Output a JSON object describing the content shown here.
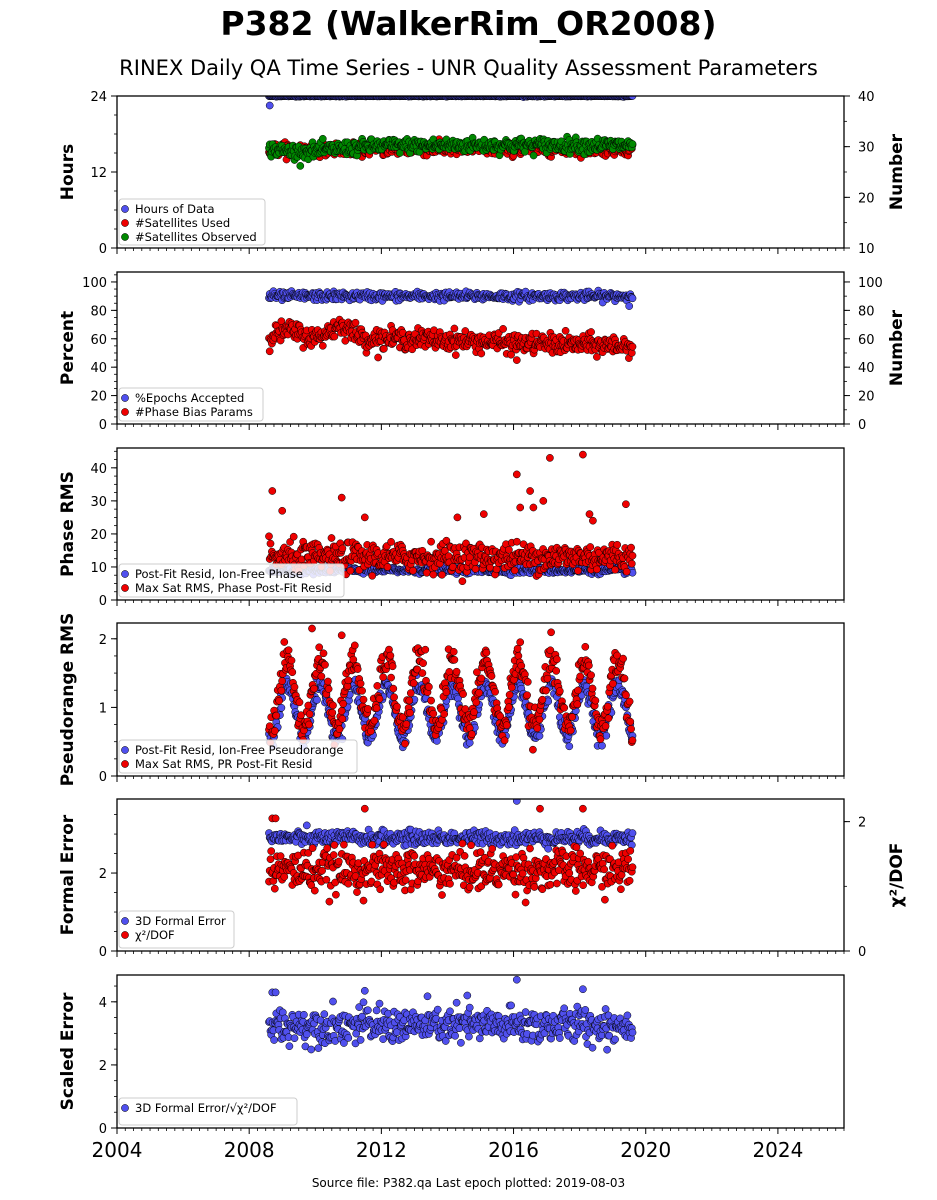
{
  "figure": {
    "title": "P382 (WalkerRim_OR2008)",
    "subtitle": "RINEX Daily QA Time Series - UNR Quality Assessment Parameters",
    "footer": "Source file: P382.qa Last epoch plotted: 2019-08-03"
  },
  "colors": {
    "blue": "#5050ee",
    "red": "#ee0000",
    "green": "#008800",
    "navy": "#101040"
  },
  "chart_data": [
    {
      "type": "scatter",
      "panel": "hours",
      "ylabel": "Hours",
      "ylim": [
        0,
        24
      ],
      "yticks": [
        "0",
        "12",
        "24"
      ],
      "y2label": "Number",
      "y2lim": [
        10,
        40
      ],
      "y2ticks": [
        "10",
        "20",
        "30",
        "40"
      ],
      "xlim": [
        2004,
        2026
      ],
      "xticks": [
        "2004",
        "2008",
        "2012",
        "2016",
        "2020",
        "2024"
      ],
      "legend": "lower-left",
      "series": [
        {
          "name": "Hours of Data",
          "color": "blue",
          "axis": "left",
          "x_range": [
            2008.6,
            2019.6
          ],
          "baseline": 24,
          "noise": 0.05,
          "outliers": [
            [
              2008.62,
              22.5
            ]
          ]
        },
        {
          "name": "#Satellites Used",
          "color": "red",
          "axis": "right",
          "x_range": [
            2008.6,
            2019.6
          ],
          "baseline": 29.5,
          "noise": 0.6,
          "outliers": [
            [
              2016.0,
              28.2
            ],
            [
              2009.1,
              30.1
            ]
          ]
        },
        {
          "name": "#Satellites Observed",
          "color": "green",
          "axis": "right",
          "x_range": [
            2008.6,
            2019.6
          ],
          "trend": [
            [
              2008.6,
              29.5
            ],
            [
              2009.5,
              29.0
            ],
            [
              2010.8,
              29.6
            ],
            [
              2012.0,
              30.2
            ],
            [
              2016.0,
              30.3
            ],
            [
              2019.6,
              30.3
            ]
          ],
          "noise": 0.7
        }
      ]
    },
    {
      "type": "scatter",
      "panel": "percent",
      "ylabel": "Percent",
      "ylim": [
        0,
        107
      ],
      "yticks": [
        "0",
        "20",
        "40",
        "60",
        "80",
        "100"
      ],
      "y2label": "Number",
      "y2lim": [
        0,
        107
      ],
      "y2ticks": [
        "0",
        "20",
        "40",
        "60",
        "80",
        "100"
      ],
      "xlim": [
        2004,
        2026
      ],
      "legend": "lower-left",
      "series": [
        {
          "name": "%Epochs Accepted",
          "color": "blue",
          "axis": "left",
          "x_range": [
            2008.6,
            2019.6
          ],
          "baseline": 90,
          "noise": 1.5,
          "outliers": [
            [
              2019.5,
              83
            ]
          ]
        },
        {
          "name": "#Phase Bias Params",
          "color": "red",
          "axis": "right",
          "x_range": [
            2008.6,
            2019.6
          ],
          "trend": [
            [
              2008.6,
              62
            ],
            [
              2009.2,
              66
            ],
            [
              2010.0,
              60
            ],
            [
              2010.8,
              70
            ],
            [
              2011.5,
              60
            ],
            [
              2013.0,
              60
            ],
            [
              2016.0,
              57
            ],
            [
              2019.6,
              55
            ]
          ],
          "noise": 3.5,
          "outliers": [
            [
              2016.1,
              45
            ]
          ]
        }
      ]
    },
    {
      "type": "scatter",
      "panel": "phase",
      "ylabel": "Phase RMS",
      "ylim": [
        0,
        46
      ],
      "yticks": [
        "0",
        "10",
        "20",
        "30",
        "40"
      ],
      "xlim": [
        2004,
        2026
      ],
      "legend": "lower-left",
      "series": [
        {
          "name": "Post-Fit Resid, Ion-Free Phase",
          "color": "blue",
          "axis": "left",
          "x_range": [
            2008.6,
            2019.6
          ],
          "baseline": 9,
          "noise": 0.5
        },
        {
          "name": "Max Sat RMS, Phase Post-Fit Resid",
          "color": "red",
          "axis": "left",
          "x_range": [
            2008.6,
            2019.6
          ],
          "baseline": 13,
          "noise": 2.2,
          "outliers": [
            [
              2008.7,
              33
            ],
            [
              2010.8,
              31
            ],
            [
              2016.1,
              38
            ],
            [
              2017.1,
              43
            ],
            [
              2018.1,
              44
            ],
            [
              2016.5,
              33
            ],
            [
              2016.9,
              30
            ],
            [
              2016.2,
              28
            ],
            [
              2019.4,
              29
            ],
            [
              2016.6,
              28
            ],
            [
              2018.3,
              26
            ],
            [
              2014.3,
              25
            ],
            [
              2011.5,
              25
            ],
            [
              2009.0,
              27
            ],
            [
              2015.1,
              26
            ],
            [
              2018.4,
              24
            ]
          ]
        }
      ]
    },
    {
      "type": "scatter",
      "panel": "pseudorange",
      "ylabel": "Pseudorange RMS",
      "ylim": [
        0,
        2.23
      ],
      "yticks": [
        "0",
        "1",
        "2"
      ],
      "xlim": [
        2004,
        2026
      ],
      "legend": "lower-left",
      "series": [
        {
          "name": "Post-Fit Resid, Ion-Free Pseudorange",
          "color": "blue",
          "axis": "left",
          "x_range": [
            2008.6,
            2019.6
          ],
          "seasonal": {
            "mean": 0.95,
            "amp": 0.38,
            "peak": 0.15
          },
          "noise": 0.07
        },
        {
          "name": "Max Sat RMS, PR Post-Fit Resid",
          "color": "red",
          "axis": "left",
          "x_range": [
            2008.6,
            2019.6
          ],
          "seasonal": {
            "mean": 1.2,
            "amp": 0.5,
            "peak": 0.15
          },
          "noise": 0.12,
          "outliers": [
            [
              2009.9,
              2.15
            ],
            [
              2010.8,
              2.05
            ],
            [
              2016.2,
              1.95
            ]
          ]
        }
      ]
    },
    {
      "type": "scatter",
      "panel": "formal",
      "ylabel": "Formal Error",
      "ylim": [
        0,
        3.9
      ],
      "yticks": [
        "0",
        "2"
      ],
      "y2label": "χ²/DOF",
      "y2lim": [
        0,
        2.35
      ],
      "y2ticks": [
        "0",
        "2"
      ],
      "xlim": [
        2004,
        2026
      ],
      "legend": "lower-left",
      "series": [
        {
          "name": "3D Formal Error",
          "color": "blue",
          "axis": "left",
          "x_range": [
            2008.6,
            2019.6
          ],
          "baseline": 2.9,
          "noise": 0.09,
          "outliers": [
            [
              2016.1,
              3.85
            ]
          ]
        },
        {
          "name": "χ²/DOF",
          "color": "red",
          "axis": "right",
          "x_range": [
            2008.6,
            2019.6
          ],
          "baseline": 1.25,
          "noise": 0.16,
          "outliers": [
            [
              2008.7,
              2.05
            ],
            [
              2008.8,
              2.05
            ],
            [
              2011.5,
              2.2
            ],
            [
              2016.8,
              2.2
            ],
            [
              2018.1,
              2.2
            ]
          ]
        }
      ]
    },
    {
      "type": "scatter",
      "panel": "scaled",
      "ylabel": "Scaled Error",
      "ylim": [
        0,
        4.85
      ],
      "yticks": [
        "0",
        "2",
        "4"
      ],
      "xlim": [
        2004,
        2026
      ],
      "legend": "lower-left",
      "series": [
        {
          "name": "3D Formal Error/√χ²/DOF",
          "color": "blue",
          "axis": "left",
          "x_range": [
            2008.6,
            2019.6
          ],
          "baseline": 3.25,
          "noise": 0.28,
          "outliers": [
            [
              2008.7,
              4.3
            ],
            [
              2008.8,
              4.3
            ],
            [
              2016.1,
              4.7
            ],
            [
              2018.1,
              4.4
            ],
            [
              2011.5,
              4.35
            ],
            [
              2014.6,
              4.2
            ]
          ]
        }
      ]
    }
  ]
}
